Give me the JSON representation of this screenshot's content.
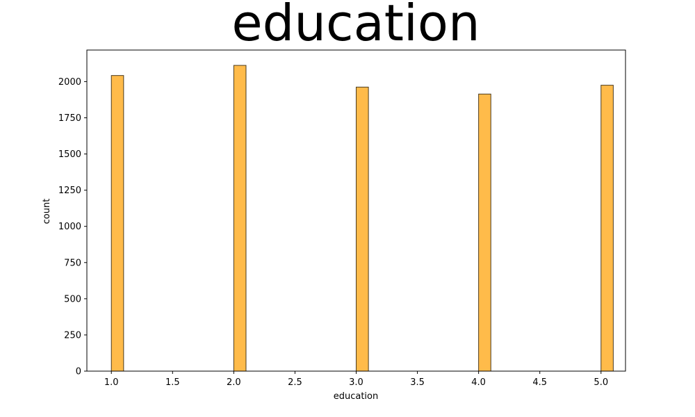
{
  "chart_data": {
    "type": "bar",
    "title": "education",
    "xlabel": "education",
    "ylabel": "count",
    "x": [
      1.0,
      2.0,
      3.0,
      4.0,
      5.0
    ],
    "values": [
      2042,
      2112,
      1962,
      1914,
      1975
    ],
    "bin_width": 0.1,
    "xlim": [
      0.8,
      5.2
    ],
    "ylim": [
      0,
      2218
    ],
    "x_ticks": [
      1.0,
      1.5,
      2.0,
      2.5,
      3.0,
      3.5,
      4.0,
      4.5,
      5.0
    ],
    "x_tick_labels": [
      "1.0",
      "1.5",
      "2.0",
      "2.5",
      "3.0",
      "3.5",
      "4.0",
      "4.5",
      "5.0"
    ],
    "y_ticks": [
      0,
      250,
      500,
      750,
      1000,
      1250,
      1500,
      1750,
      2000
    ],
    "y_tick_labels": [
      "0",
      "250",
      "500",
      "750",
      "1000",
      "1250",
      "1500",
      "1750",
      "2000"
    ],
    "grid": false,
    "bar_color": "#ffbb4a",
    "edge_color": "#4a3a1e"
  }
}
